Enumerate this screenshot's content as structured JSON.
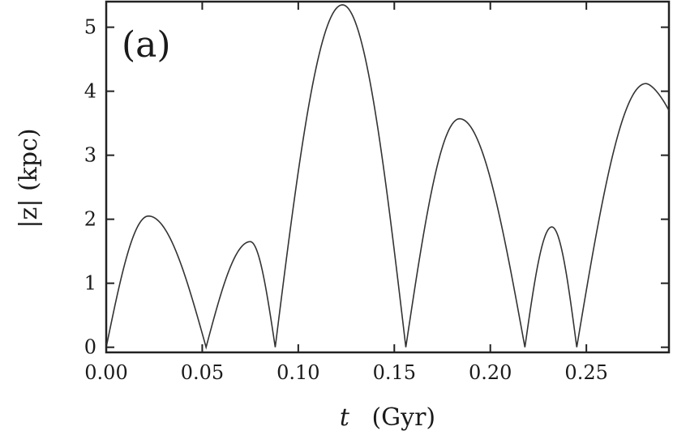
{
  "chart_data": {
    "type": "line",
    "panel_label": "(a)",
    "xlabel_var": "t",
    "xlabel_unit": "(Gyr)",
    "ylabel": "|z| (kpc)",
    "xlim": [
      0.0,
      0.293
    ],
    "ylim": [
      -0.08,
      5.4
    ],
    "x_ticks": [
      0.0,
      0.05,
      0.1,
      0.15,
      0.2,
      0.25
    ],
    "x_tick_labels": [
      "0.00",
      "0.05",
      "0.10",
      "0.15",
      "0.20",
      "0.25"
    ],
    "y_ticks": [
      0,
      1,
      2,
      3,
      4,
      5
    ],
    "y_tick_labels": [
      "0",
      "1",
      "2",
      "3",
      "4",
      "5"
    ],
    "grid": false,
    "legend": "none",
    "series": [
      {
        "arcs": [
          {
            "t_start": 0.0,
            "t_end": 0.052,
            "peak_t": 0.022,
            "peak_z": 2.05
          },
          {
            "t_start": 0.052,
            "t_end": 0.088,
            "peak_t": 0.075,
            "peak_z": 1.65
          },
          {
            "t_start": 0.088,
            "t_end": 0.156,
            "peak_t": 0.123,
            "peak_z": 5.35
          },
          {
            "t_start": 0.156,
            "t_end": 0.218,
            "peak_t": 0.184,
            "peak_z": 3.57
          },
          {
            "t_start": 0.218,
            "t_end": 0.245,
            "peak_t": 0.232,
            "peak_z": 1.88
          },
          {
            "t_start": 0.245,
            "t_end": 0.293,
            "peak_t": 0.281,
            "peak_z": 4.12,
            "end_z": 3.7
          }
        ]
      }
    ]
  }
}
